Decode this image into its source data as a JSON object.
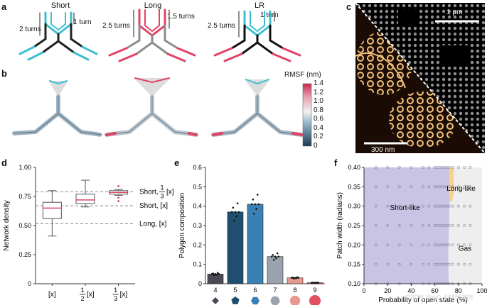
{
  "panel_labels": {
    "a": "a",
    "b": "b",
    "c": "c",
    "d": "d",
    "e": "e",
    "f": "f"
  },
  "panel_a": {
    "short": {
      "title": "Short",
      "lbl_left": "2 turns",
      "lbl_right": "1 turn"
    },
    "long": {
      "title": "Long",
      "lbl_left": "2.5 turns",
      "lbl_right": "1.5 turns"
    },
    "lr": {
      "title": "LR",
      "lbl_left": "2.5 turns",
      "lbl_right": "1 turn"
    }
  },
  "panel_b": {
    "colorbar_title": "RMSF (nm)",
    "colorbar_ticks": [
      "1.4",
      "1.2",
      "1.0",
      "0.8",
      "0.6",
      "0.4",
      "0.2",
      "0"
    ]
  },
  "panel_c": {
    "scale_top": "1 μm",
    "scale_bottom": "300 nm"
  },
  "colors": {
    "cyan": "#3cbfd0",
    "red": "#e04466",
    "black": "#111111",
    "gray": "#8c8c8c",
    "purple": "#c9c3e4",
    "orange": "#f6d28e",
    "gas": "#eeeeee"
  },
  "chart_data": [
    {
      "type": "box",
      "panel": "d",
      "ylabel": "Network density",
      "ylim": [
        0,
        1.0
      ],
      "yticks": [
        "0",
        "0.25",
        "0.50",
        "0.75",
        "1.00"
      ],
      "categories": [
        "[x]",
        "1/2[x]",
        "1/3[x]"
      ],
      "boxes": [
        {
          "whisker_low": 0.41,
          "q1": 0.56,
          "median": 0.65,
          "q3": 0.7,
          "whisker_high": 0.8
        },
        {
          "whisker_low": 0.66,
          "q1": 0.69,
          "median": 0.72,
          "q3": 0.77,
          "whisker_high": 0.89
        },
        {
          "whisker_low": 0.76,
          "q1": 0.77,
          "median": 0.785,
          "q3": 0.8,
          "whisker_high": 0.81,
          "outliers": [
            0.71,
            0.74,
            0.84
          ]
        }
      ],
      "reference_lines": [
        {
          "value": 0.79,
          "label_name": "Short, ",
          "frac_num": "1",
          "frac_den": "3",
          "label_tail": "[x]"
        },
        {
          "value": 0.67,
          "label": "Short, [x]"
        },
        {
          "value": 0.515,
          "label": "Long, [x]"
        }
      ]
    },
    {
      "type": "bar",
      "panel": "e",
      "ylabel": "Polygon composition",
      "ylim": [
        0,
        0.6
      ],
      "yticks": [
        "0",
        "0.1",
        "0.2",
        "0.3",
        "0.4",
        "0.5",
        "0.6"
      ],
      "categories": [
        "4",
        "5",
        "6",
        "7",
        "8",
        "9"
      ],
      "values": [
        0.05,
        0.37,
        0.41,
        0.14,
        0.03,
        0.005
      ],
      "bar_colors": [
        "#4a4a55",
        "#1f4e6e",
        "#3a80b5",
        "#9aa3ad",
        "#e89a90",
        "#e0505f"
      ],
      "marker_shapes": [
        "diamond",
        "pentagon",
        "hexagon",
        "circle",
        "circle",
        "circle"
      ]
    },
    {
      "type": "phase-diagram",
      "panel": "f",
      "xlabel": "Probability of open state (%)",
      "ylabel": "Patch width (radians)",
      "xlim": [
        0,
        100
      ],
      "ylim": [
        0.1,
        0.4
      ],
      "xticks": [
        "0",
        "20",
        "40",
        "60",
        "80",
        "100"
      ],
      "yticks": [
        "0.10",
        "0.15",
        "0.20",
        "0.25",
        "0.30",
        "0.35",
        "0.40"
      ],
      "regions": [
        "Short-like",
        "Long-like",
        "Gas"
      ]
    }
  ],
  "tick_fraction": {
    "num": "1",
    "den_half": "2",
    "den_third": "3",
    "tail": "[x]"
  },
  "watermark": "CSDN @m0_66850328"
}
